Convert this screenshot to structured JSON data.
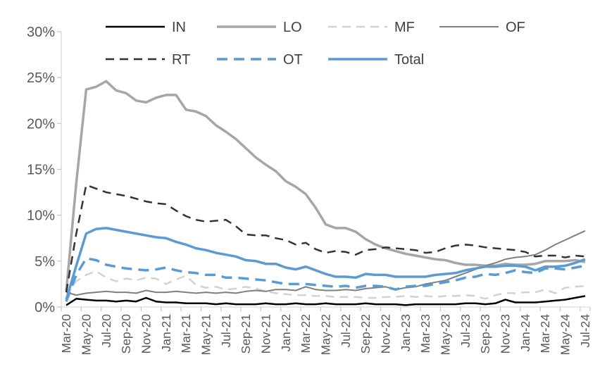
{
  "chart_data": {
    "type": "line",
    "title": "",
    "xlabel": "",
    "ylabel": "",
    "x_label_every": 2,
    "months": [
      "Mar-20",
      "Apr-20",
      "May-20",
      "Jun-20",
      "Jul-20",
      "Aug-20",
      "Sep-20",
      "Oct-20",
      "Nov-20",
      "Dec-20",
      "Jan-21",
      "Feb-21",
      "Mar-21",
      "Apr-21",
      "May-21",
      "Jun-21",
      "Jul-21",
      "Aug-21",
      "Sep-21",
      "Oct-21",
      "Nov-21",
      "Dec-21",
      "Jan-22",
      "Feb-22",
      "Mar-22",
      "Apr-22",
      "May-22",
      "Jun-22",
      "Jul-22",
      "Aug-22",
      "Sep-22",
      "Oct-22",
      "Nov-22",
      "Dec-22",
      "Jan-23",
      "Feb-23",
      "Mar-23",
      "Apr-23",
      "May-23",
      "Jun-23",
      "Jul-23",
      "Aug-23",
      "Sep-23",
      "Oct-23",
      "Nov-23",
      "Dec-23",
      "Jan-24",
      "Feb-24",
      "Mar-24",
      "Apr-24",
      "May-24",
      "Jun-24",
      "Jul-24"
    ],
    "y_axis": {
      "min": 0,
      "max": 30,
      "step": 5,
      "tick_labels": [
        "0%",
        "5%",
        "10%",
        "15%",
        "20%",
        "25%",
        "30%"
      ]
    },
    "legend": {
      "position": "top",
      "rows": [
        [
          "IN",
          "LO",
          "MF",
          "OF"
        ],
        [
          "RT",
          "OT",
          "Total"
        ]
      ]
    },
    "grid": false,
    "axis_color": "#d9d9d9",
    "tick_color": "#c9c9c9",
    "axis_text_color": "#595959",
    "legend_text_color": "#404040",
    "series": [
      {
        "name": "IN",
        "color": "#000000",
        "style": "solid",
        "width": 2.5,
        "dash": "",
        "values": [
          0.2,
          0.9,
          0.8,
          0.7,
          0.7,
          0.6,
          0.7,
          0.6,
          1.0,
          0.6,
          0.5,
          0.5,
          0.4,
          0.4,
          0.4,
          0.3,
          0.4,
          0.3,
          0.3,
          0.3,
          0.4,
          0.3,
          0.3,
          0.4,
          0.3,
          0.3,
          0.4,
          0.3,
          0.3,
          0.3,
          0.4,
          0.3,
          0.3,
          0.3,
          0.2,
          0.3,
          0.3,
          0.3,
          0.3,
          0.3,
          0.4,
          0.4,
          0.3,
          0.4,
          0.8,
          0.5,
          0.5,
          0.5,
          0.6,
          0.7,
          0.8,
          1.0,
          1.2
        ]
      },
      {
        "name": "LO",
        "color": "#a6a6a6",
        "style": "solid",
        "width": 3.5,
        "dash": "",
        "values": [
          1.7,
          13.5,
          23.7,
          24.0,
          24.6,
          23.6,
          23.3,
          22.5,
          22.3,
          22.8,
          23.1,
          23.1,
          21.5,
          21.3,
          20.8,
          19.8,
          19.1,
          18.3,
          17.3,
          16.3,
          15.5,
          14.8,
          13.7,
          13.1,
          12.3,
          10.8,
          9.0,
          8.6,
          8.6,
          8.2,
          7.4,
          6.8,
          6.4,
          6.1,
          5.8,
          5.6,
          5.4,
          5.2,
          5.1,
          4.8,
          4.6,
          4.6,
          4.5,
          4.5,
          4.7,
          4.6,
          4.6,
          4.7,
          5.0,
          5.0,
          5.0,
          5.1,
          4.9
        ]
      },
      {
        "name": "MF",
        "color": "#d2d2d2",
        "style": "dashed",
        "width": 2.5,
        "dash": "12 8",
        "values": [
          1.2,
          2.8,
          3.5,
          3.9,
          3.2,
          2.8,
          3.1,
          2.9,
          3.2,
          3.1,
          2.5,
          3.0,
          3.4,
          2.4,
          2.1,
          2.2,
          1.9,
          2.0,
          2.2,
          2.0,
          1.7,
          1.5,
          1.4,
          1.3,
          1.3,
          1.2,
          1.2,
          1.1,
          1.1,
          1.1,
          1.0,
          1.0,
          1.1,
          1.1,
          1.2,
          1.1,
          1.2,
          1.1,
          1.2,
          1.2,
          1.3,
          1.2,
          0.9,
          1.3,
          1.5,
          1.5,
          1.6,
          1.6,
          1.9,
          1.5,
          2.1,
          2.2,
          2.3
        ]
      },
      {
        "name": "OF",
        "color": "#7f7f7f",
        "style": "solid",
        "width": 2,
        "dash": "",
        "values": [
          1.6,
          1.3,
          1.5,
          1.6,
          1.7,
          1.6,
          1.6,
          1.5,
          1.8,
          1.6,
          1.6,
          1.7,
          1.6,
          1.5,
          1.6,
          1.5,
          1.6,
          1.5,
          1.7,
          1.8,
          1.7,
          1.9,
          1.9,
          1.8,
          2.2,
          1.9,
          1.8,
          1.8,
          1.9,
          1.8,
          2.0,
          2.1,
          2.2,
          1.9,
          2.1,
          2.2,
          2.5,
          2.7,
          2.9,
          3.3,
          3.7,
          4.1,
          4.5,
          4.8,
          5.2,
          5.4,
          5.5,
          5.7,
          6.2,
          6.8,
          7.3,
          7.8,
          8.3
        ]
      },
      {
        "name": "RT",
        "color": "#333333",
        "style": "dashed",
        "width": 2.5,
        "dash": "12 8",
        "values": [
          1.6,
          8.0,
          13.3,
          12.9,
          12.5,
          12.3,
          12.1,
          11.8,
          11.5,
          11.3,
          11.2,
          10.5,
          9.9,
          9.5,
          9.3,
          9.4,
          9.5,
          8.8,
          7.9,
          7.8,
          7.8,
          7.5,
          7.3,
          6.8,
          7.0,
          6.3,
          5.9,
          6.1,
          6.0,
          5.7,
          6.2,
          6.3,
          6.5,
          6.4,
          6.3,
          6.2,
          5.9,
          6.0,
          6.4,
          6.7,
          6.8,
          6.7,
          6.5,
          6.4,
          6.3,
          6.2,
          6.0,
          5.5,
          5.6,
          5.6,
          5.4,
          5.6,
          5.5
        ]
      },
      {
        "name": "OT",
        "color": "#5b9bd5",
        "style": "dashed",
        "width": 3.5,
        "dash": "15 9",
        "values": [
          0.6,
          3.5,
          5.3,
          5.1,
          4.6,
          4.4,
          4.2,
          4.1,
          4.0,
          4.1,
          4.3,
          4.0,
          3.8,
          3.7,
          3.5,
          3.5,
          3.2,
          3.2,
          3.1,
          3.0,
          2.9,
          2.7,
          2.5,
          2.5,
          2.5,
          2.4,
          2.3,
          2.2,
          2.3,
          2.1,
          2.3,
          2.3,
          2.2,
          1.9,
          2.2,
          2.3,
          2.3,
          2.5,
          2.7,
          2.9,
          3.2,
          3.3,
          3.6,
          3.5,
          3.7,
          4.0,
          3.8,
          3.7,
          4.2,
          4.2,
          4.1,
          4.3,
          4.5
        ]
      },
      {
        "name": "Total",
        "color": "#5b9bd5",
        "style": "solid",
        "width": 3.5,
        "dash": "",
        "values": [
          0.8,
          4.5,
          8.0,
          8.5,
          8.6,
          8.4,
          8.2,
          8.0,
          7.8,
          7.6,
          7.5,
          7.1,
          6.8,
          6.4,
          6.2,
          5.9,
          5.7,
          5.5,
          5.1,
          5.0,
          4.7,
          4.7,
          4.3,
          4.1,
          4.4,
          4.0,
          3.6,
          3.3,
          3.3,
          3.2,
          3.6,
          3.5,
          3.5,
          3.3,
          3.3,
          3.3,
          3.3,
          3.5,
          3.6,
          3.7,
          4.0,
          4.2,
          4.4,
          4.4,
          4.5,
          4.5,
          4.4,
          4.0,
          4.4,
          4.4,
          4.5,
          4.8,
          5.2
        ]
      }
    ]
  }
}
